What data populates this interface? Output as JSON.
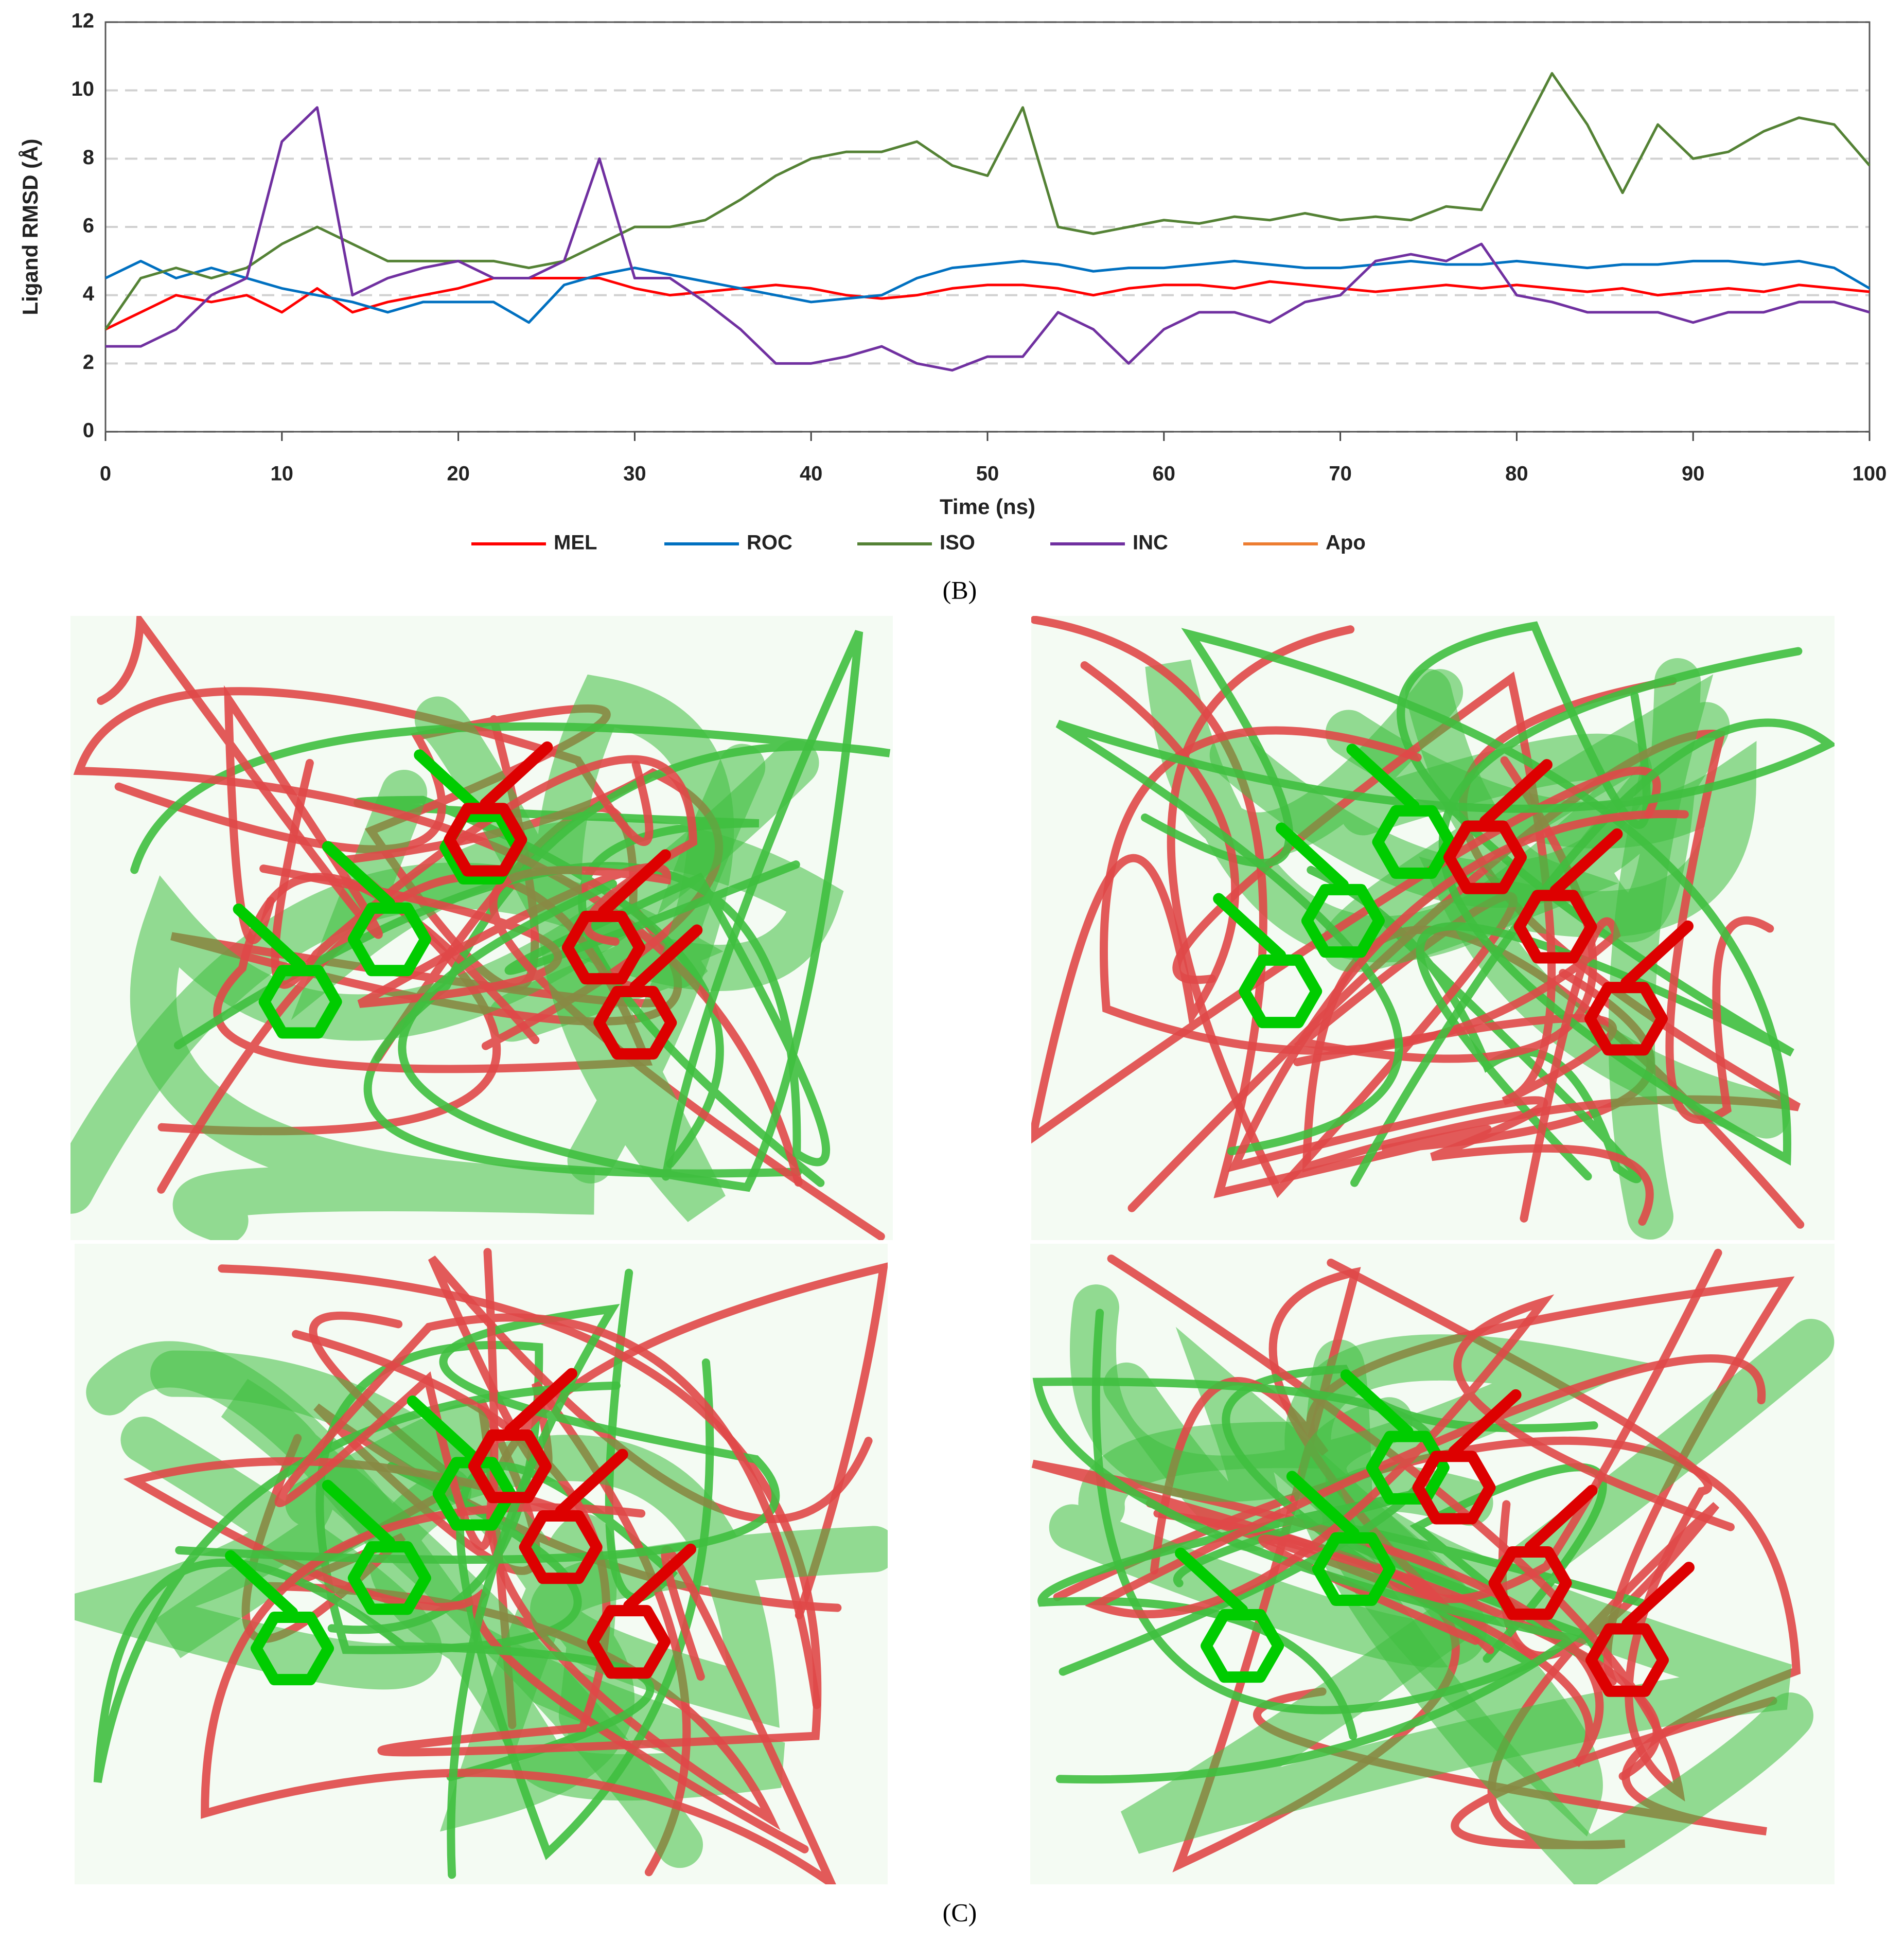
{
  "chart_data": {
    "type": "line",
    "ylabel": "Ligand RMSD (Å)",
    "xlabel": "Time (ns)",
    "x": [
      0,
      2,
      4,
      6,
      8,
      10,
      12,
      14,
      16,
      18,
      20,
      22,
      24,
      26,
      28,
      30,
      32,
      34,
      36,
      38,
      40,
      42,
      44,
      46,
      48,
      50,
      52,
      54,
      56,
      58,
      60,
      62,
      64,
      66,
      68,
      70,
      72,
      74,
      76,
      78,
      80,
      82,
      84,
      86,
      88,
      90,
      92,
      94,
      96,
      98,
      100
    ],
    "series": [
      {
        "name": "MEL",
        "color": "#ff0000",
        "values": [
          3,
          3.5,
          4,
          3.8,
          4,
          3.5,
          4.2,
          3.5,
          3.8,
          4,
          4.2,
          4.5,
          4.5,
          4.5,
          4.5,
          4.2,
          4,
          4.1,
          4.2,
          4.3,
          4.2,
          4,
          3.9,
          4,
          4.2,
          4.3,
          4.3,
          4.2,
          4,
          4.2,
          4.3,
          4.3,
          4.2,
          4.4,
          4.3,
          4.2,
          4.1,
          4.2,
          4.3,
          4.2,
          4.3,
          4.2,
          4.1,
          4.2,
          4,
          4.1,
          4.2,
          4.1,
          4.3,
          4.2,
          4.1
        ]
      },
      {
        "name": "ROC",
        "color": "#0070c0",
        "values": [
          4.5,
          5,
          4.5,
          4.8,
          4.5,
          4.2,
          4,
          3.8,
          3.5,
          3.8,
          3.8,
          3.8,
          3.2,
          4.3,
          4.6,
          4.8,
          4.6,
          4.4,
          4.2,
          4,
          3.8,
          3.9,
          4,
          4.5,
          4.8,
          4.9,
          5,
          4.9,
          4.7,
          4.8,
          4.8,
          4.9,
          5,
          4.9,
          4.8,
          4.8,
          4.9,
          5,
          4.9,
          4.9,
          5,
          4.9,
          4.8,
          4.9,
          4.9,
          5,
          5,
          4.9,
          5,
          4.8,
          4.2
        ]
      },
      {
        "name": "ISO",
        "color": "#548235",
        "values": [
          3,
          4.5,
          4.8,
          4.5,
          4.8,
          5.5,
          6,
          5.5,
          5,
          5,
          5,
          5,
          4.8,
          5,
          5.5,
          6,
          6,
          6.2,
          6.8,
          7.5,
          8,
          8.2,
          8.2,
          8.5,
          7.8,
          7.5,
          9.5,
          6,
          5.8,
          6,
          6.2,
          6.1,
          6.3,
          6.2,
          6.4,
          6.2,
          6.3,
          6.2,
          6.6,
          6.5,
          8.5,
          10.5,
          9,
          7,
          9,
          8,
          8.2,
          8.8,
          9.2,
          9,
          7.8
        ]
      },
      {
        "name": "INC",
        "color": "#7030a0",
        "values": [
          2.5,
          2.5,
          3,
          4,
          4.5,
          8.5,
          9.5,
          4,
          4.5,
          4.8,
          5,
          4.5,
          4.5,
          5,
          8,
          4.5,
          4.5,
          3.8,
          3,
          2,
          2,
          2.2,
          2.5,
          2,
          1.8,
          2.2,
          2.2,
          3.5,
          3,
          2,
          3,
          3.5,
          3.5,
          3.2,
          3.8,
          4,
          5,
          5.2,
          5,
          5.5,
          4,
          3.8,
          3.5,
          3.5,
          3.5,
          3.2,
          3.5,
          3.5,
          3.8,
          3.8,
          3.5
        ]
      },
      {
        "name": "Apo",
        "color": "#ed7d31",
        "values": [
          null,
          null,
          null,
          null,
          null,
          null,
          null,
          null,
          null,
          null,
          null,
          null,
          null,
          null,
          null,
          null,
          null,
          null,
          null,
          null,
          null,
          null,
          null,
          null,
          null,
          null,
          null,
          null,
          null,
          null,
          null,
          null,
          null,
          null,
          null,
          null,
          null,
          null,
          null,
          null,
          null,
          null,
          null,
          null,
          null,
          null,
          null,
          null,
          null,
          null,
          null
        ]
      }
    ],
    "xlim": [
      0,
      100
    ],
    "xticks": [
      0,
      10,
      20,
      30,
      40,
      50,
      60,
      70,
      80,
      90,
      100
    ],
    "ylim": [
      0,
      12
    ],
    "yticks": [
      0,
      2,
      4,
      6,
      8,
      10,
      12
    ],
    "grid": true,
    "legend": "bottom"
  },
  "figure": {
    "label_b": "(B)",
    "label_c": "(C)"
  }
}
